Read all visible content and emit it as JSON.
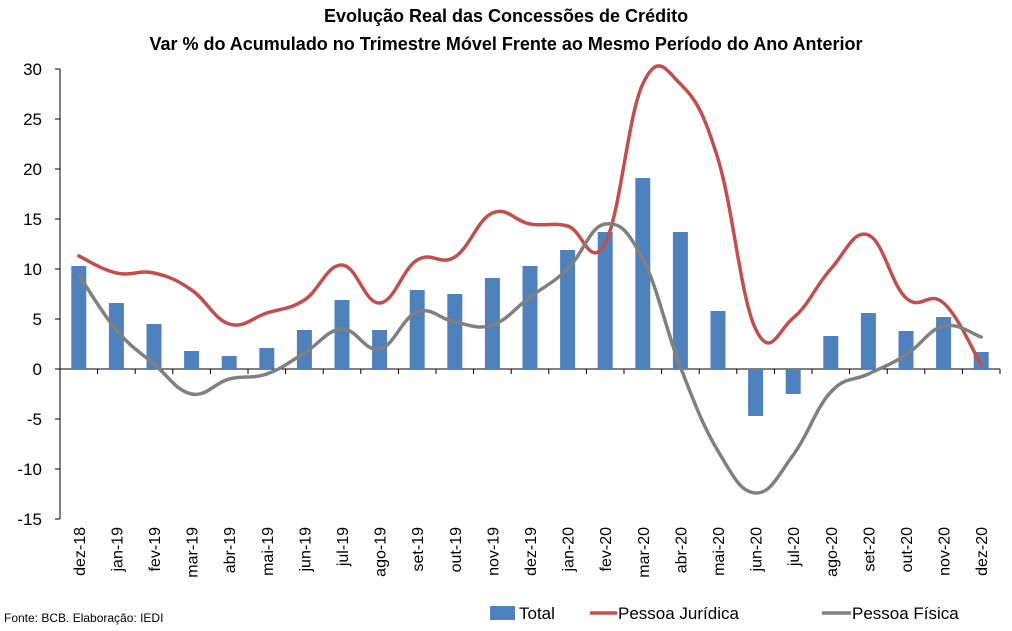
{
  "title": "Evolução Real das Concessões de Crédito",
  "subtitle": "Var % do Acumulado no Trimestre Móvel Frente ao Mesmo Período do Ano Anterior",
  "source": "Fonte: BCB. Elaboração: IEDI",
  "colors": {
    "total": "#4F81BD",
    "pessoa_juridica": "#C0504D",
    "pessoa_fisica": "#808080"
  },
  "chart_data": {
    "type": "bar",
    "categories": [
      "dez-18",
      "jan-19",
      "fev-19",
      "mar-19",
      "abr-19",
      "mai-19",
      "jun-19",
      "jul-19",
      "ago-19",
      "set-19",
      "out-19",
      "nov-19",
      "dez-19",
      "jan-20",
      "fev-20",
      "mar-20",
      "abr-20",
      "mai-20",
      "jun-20",
      "jul-20",
      "ago-20",
      "set-20",
      "out-20",
      "nov-20",
      "dez-20"
    ],
    "ylim": [
      -15,
      30
    ],
    "yticks": [
      -15,
      -10,
      -5,
      0,
      5,
      10,
      15,
      20,
      25,
      30
    ],
    "legend_position": "bottom",
    "series": [
      {
        "name": "Total",
        "type": "bar",
        "values": [
          10.3,
          6.6,
          4.5,
          1.8,
          1.3,
          2.1,
          3.9,
          6.9,
          3.9,
          7.9,
          7.5,
          9.1,
          10.3,
          11.9,
          13.7,
          19.1,
          13.7,
          5.8,
          -4.7,
          -2.5,
          3.3,
          5.6,
          3.8,
          5.2,
          1.7
        ]
      },
      {
        "name": "Pessoa Jurídica",
        "type": "line",
        "values": [
          11.3,
          9.6,
          9.6,
          7.9,
          4.5,
          5.6,
          6.9,
          10.4,
          6.6,
          10.9,
          11.2,
          15.6,
          14.5,
          14.3,
          12.6,
          28.5,
          28.5,
          21.0,
          4.0,
          5.1,
          10.0,
          13.4,
          7.1,
          6.6,
          0.4
        ]
      },
      {
        "name": "Pessoa Física",
        "type": "line",
        "values": [
          9.4,
          3.9,
          0.5,
          -2.5,
          -1.0,
          -0.5,
          1.6,
          4.0,
          2.0,
          5.7,
          4.7,
          4.4,
          7.2,
          10.0,
          14.5,
          11.0,
          0.2,
          -8.2,
          -12.4,
          -8.6,
          -2.3,
          -0.5,
          1.4,
          4.3,
          3.2
        ]
      }
    ]
  }
}
